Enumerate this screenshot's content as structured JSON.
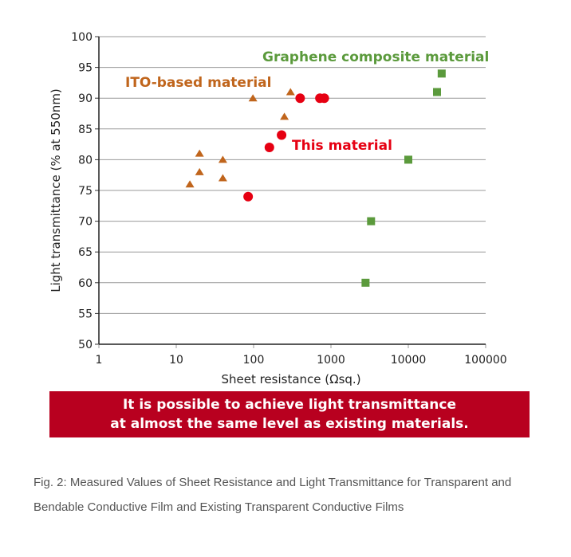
{
  "chart_data": {
    "type": "scatter",
    "xlabel": "Sheet resistance (Ωsq.)",
    "ylabel": "Light transmittance (% at  550nm)",
    "xscale": "log",
    "xlim": [
      1,
      100000
    ],
    "ylim": [
      50,
      100
    ],
    "xticks": [
      "1",
      "10",
      "100",
      "1000",
      "10000",
      "100000"
    ],
    "yticks": [
      "50",
      "55",
      "60",
      "65",
      "70",
      "75",
      "80",
      "85",
      "90",
      "95",
      "100"
    ],
    "grid": "horizontal",
    "series": [
      {
        "name": "ITO-based material",
        "marker": "triangle",
        "color": "#c0651c",
        "points": [
          [
            98,
            90
          ],
          [
            300,
            91
          ],
          [
            250,
            87
          ],
          [
            20,
            81
          ],
          [
            40,
            80
          ],
          [
            20,
            78
          ],
          [
            40,
            77
          ],
          [
            15,
            76
          ]
        ]
      },
      {
        "name": "This material",
        "marker": "circle",
        "color": "#e60012",
        "points": [
          [
            400,
            90
          ],
          [
            720,
            90
          ],
          [
            820,
            90
          ],
          [
            230,
            84
          ],
          [
            160,
            82
          ],
          [
            85,
            74
          ]
        ]
      },
      {
        "name": "Graphene composite material",
        "marker": "square",
        "color": "#5b9a3c",
        "points": [
          [
            27000,
            94
          ],
          [
            23500,
            91
          ],
          [
            10000,
            80
          ],
          [
            3300,
            70
          ],
          [
            2800,
            60
          ]
        ]
      }
    ]
  },
  "banner": {
    "line1": "It is possible to achieve light transmittance",
    "line2": "at almost the same level as existing materials."
  },
  "caption": "Fig. 2: Measured Values of Sheet Resistance and Light Transmittance for Transparent and Bendable Conductive Film and Existing Transparent Conductive Films"
}
